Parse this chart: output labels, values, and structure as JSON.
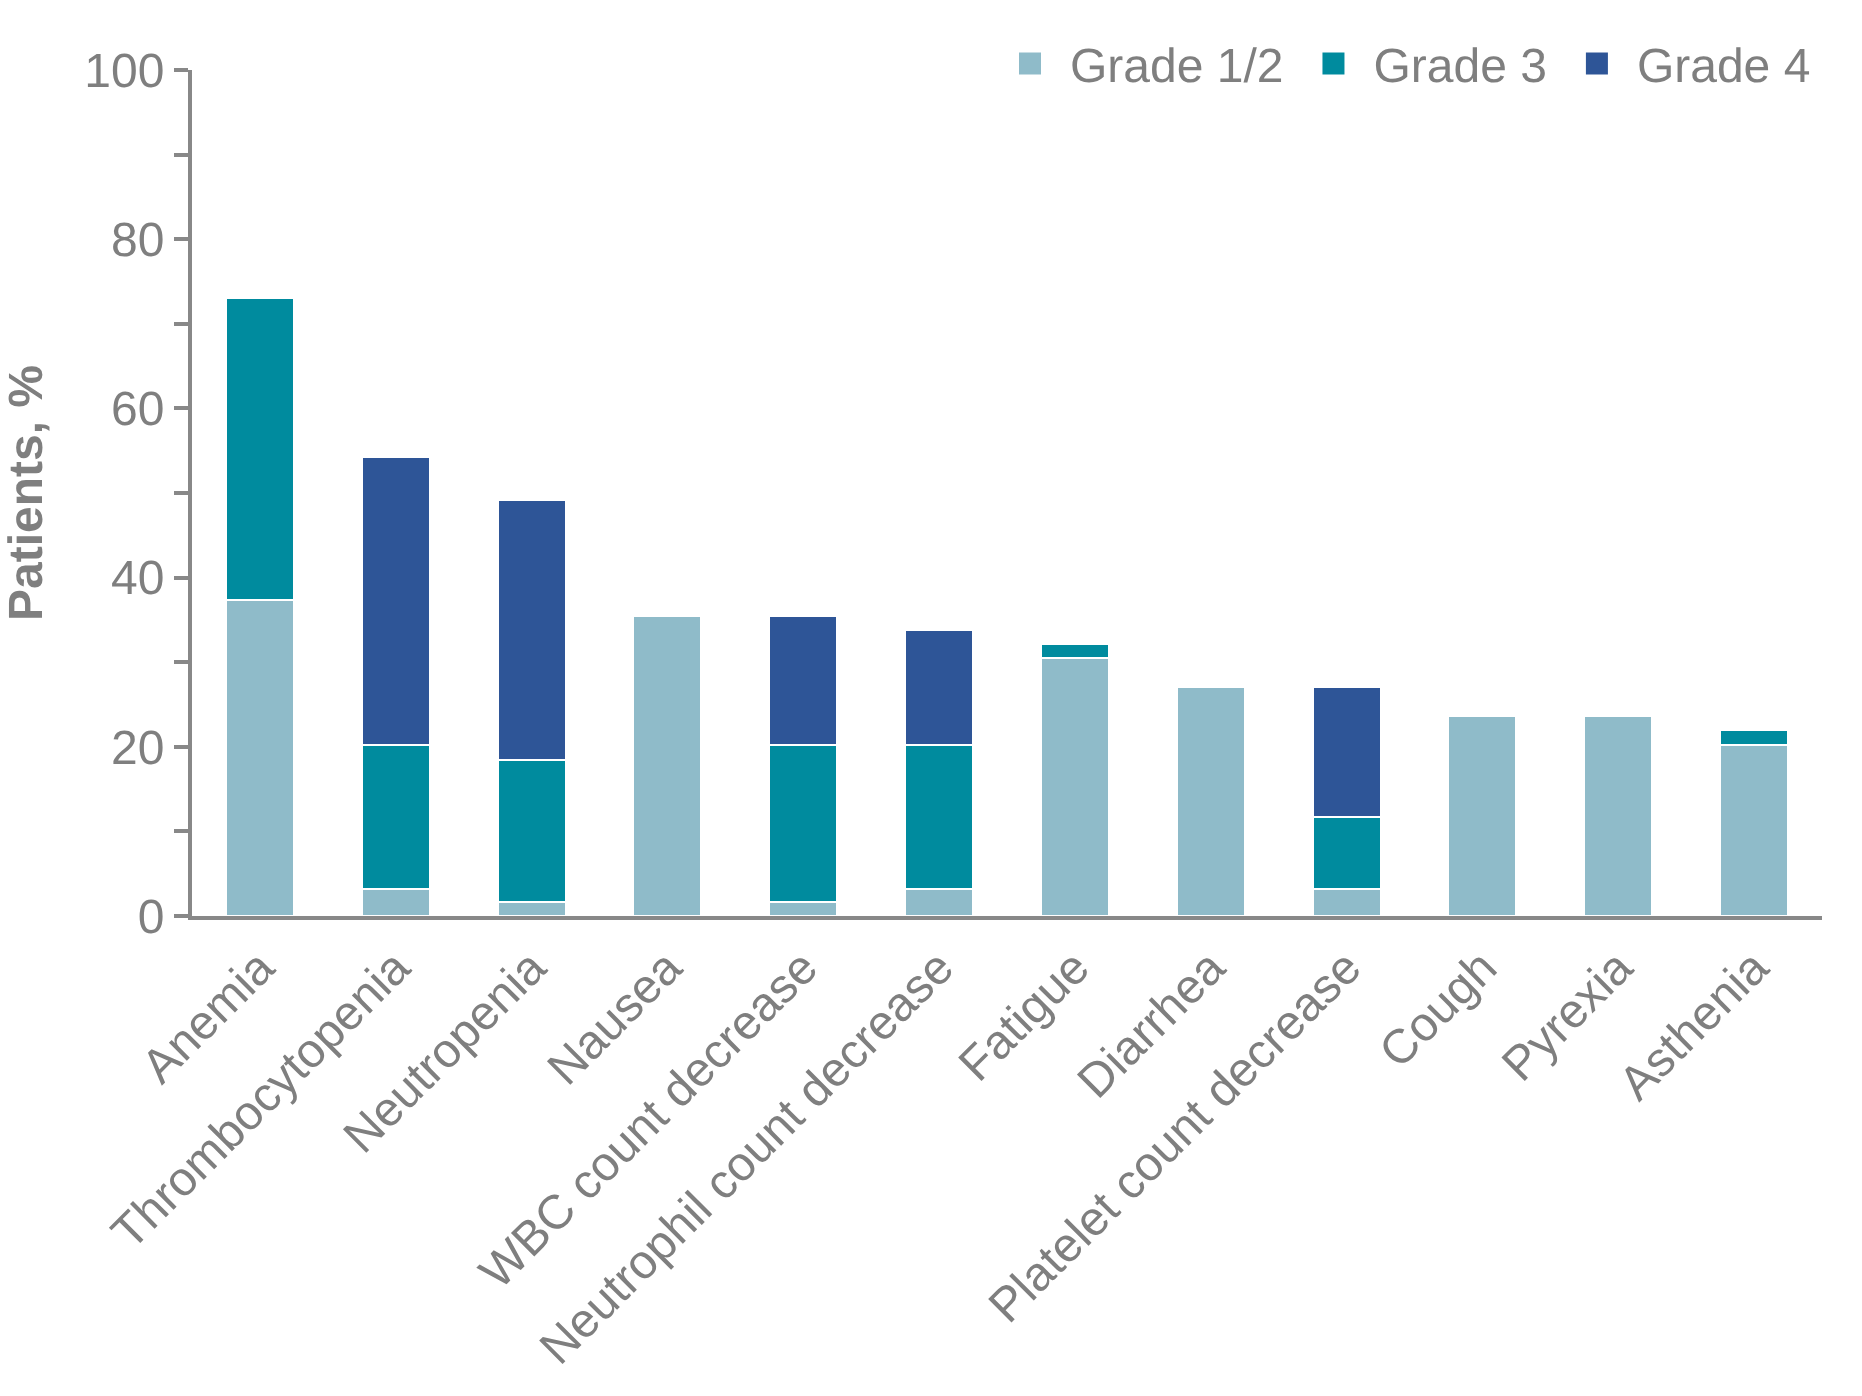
{
  "chart_data": {
    "type": "bar",
    "stacked": true,
    "ylabel": "Patients, %",
    "categories": [
      "Anemia",
      "Thrombocytopenia",
      "Neutropenia",
      "Nausea",
      "WBC count decrease",
      "Neutrophil count decrease",
      "Fatigue",
      "Diarrhea",
      "Platelet count decrease",
      "Cough",
      "Pyrexia",
      "Asthenia"
    ],
    "series": [
      {
        "name": "Grade 1/2",
        "color": "#8fbbc9",
        "values": [
          37.4,
          3.2,
          1.7,
          35.5,
          1.7,
          3.2,
          30.5,
          27.1,
          3.2,
          23.6,
          23.6,
          20.2
        ]
      },
      {
        "name": "Grade 3",
        "color": "#008b9e",
        "values": [
          35.6,
          17.0,
          16.8,
          null,
          18.5,
          17.0,
          1.7,
          null,
          8.5,
          null,
          null,
          1.8
        ]
      },
      {
        "name": "Grade 4",
        "color": "#2e5597",
        "values": [
          null,
          34.0,
          30.7,
          null,
          15.3,
          13.6,
          null,
          null,
          15.4,
          null,
          null,
          null
        ]
      }
    ],
    "ylim": [
      0,
      100
    ],
    "yticks": [
      0,
      {
        "value": 10,
        "label": null
      },
      20,
      {
        "value": 30,
        "label": null
      },
      40,
      {
        "value": 50,
        "label": null
      },
      60,
      {
        "value": 70,
        "label": null
      },
      80,
      {
        "value": 90,
        "label": null
      },
      100
    ],
    "legend": "top right"
  }
}
